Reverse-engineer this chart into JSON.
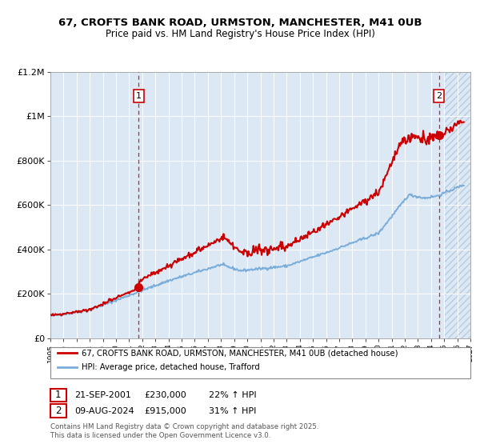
{
  "title_line1": "67, CROFTS BANK ROAD, URMSTON, MANCHESTER, M41 0UB",
  "title_line2": "Price paid vs. HM Land Registry's House Price Index (HPI)",
  "legend_line1": "67, CROFTS BANK ROAD, URMSTON, MANCHESTER, M41 0UB (detached house)",
  "legend_line2": "HPI: Average price, detached house, Trafford",
  "annotation1_date": "21-SEP-2001",
  "annotation1_price": "£230,000",
  "annotation1_hpi": "22% ↑ HPI",
  "annotation2_date": "09-AUG-2024",
  "annotation2_price": "£915,000",
  "annotation2_hpi": "31% ↑ HPI",
  "footer": "Contains HM Land Registry data © Crown copyright and database right 2025.\nThis data is licensed under the Open Government Licence v3.0.",
  "sale1_year": 2001.72,
  "sale1_value": 230000,
  "sale2_year": 2024.6,
  "sale2_value": 915000,
  "xmin": 1995,
  "xmax": 2027,
  "ymin": 0,
  "ymax": 1200000,
  "background_color": "#dce9f5",
  "grid_color": "#ffffff",
  "hpi_color": "#7aadda",
  "price_color": "#cc0000",
  "future_start": 2025.0
}
